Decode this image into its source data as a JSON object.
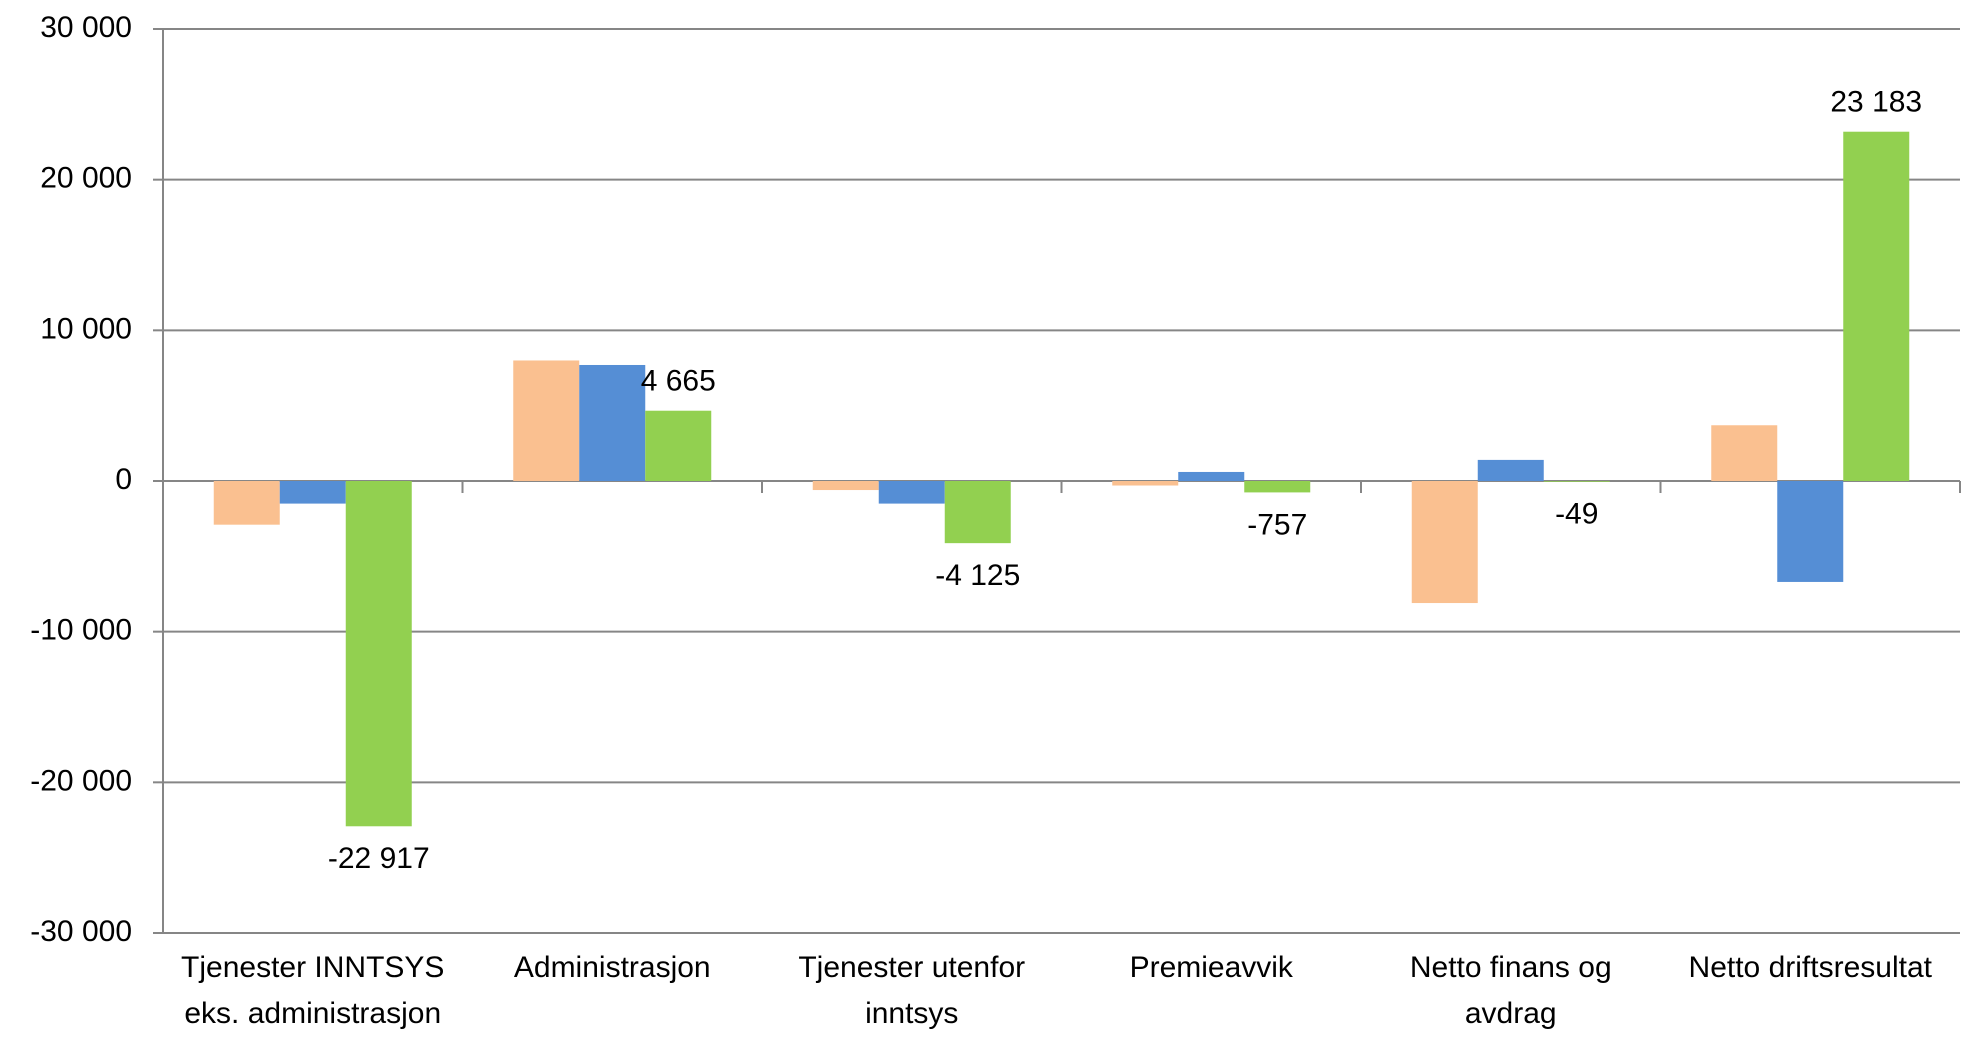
{
  "chart_data": {
    "type": "bar",
    "categories": [
      "Tjenester INNTSYS eks. administrasjon",
      "Administrasjon",
      "Tjenester utenfor inntsys",
      "Premieavvik",
      "Netto finans og avdrag",
      "Netto driftsresultat"
    ],
    "series": [
      {
        "color": "#fac090",
        "values": [
          -2900,
          8000,
          -600,
          -300,
          -8100,
          3700
        ]
      },
      {
        "color": "#558ed5",
        "values": [
          -1500,
          7700,
          -1500,
          600,
          1400,
          -6700
        ]
      },
      {
        "color": "#92d050",
        "values": [
          -22917,
          4665,
          -4125,
          -757,
          -49,
          23183
        ],
        "value_labels": [
          "-22 917",
          "4 665",
          "-4 125",
          "-757",
          "-49",
          "23 183"
        ]
      }
    ],
    "ylim": [
      -30000,
      30000
    ],
    "yticks": [
      {
        "value": -30000,
        "label": "-30 000"
      },
      {
        "value": -20000,
        "label": "-20 000"
      },
      {
        "value": -10000,
        "label": "-10 000"
      },
      0,
      {
        "value": 10000,
        "label": "10 000"
      },
      {
        "value": 20000,
        "label": "20 000"
      },
      {
        "value": 30000,
        "label": "30 000"
      }
    ],
    "grid": true
  }
}
